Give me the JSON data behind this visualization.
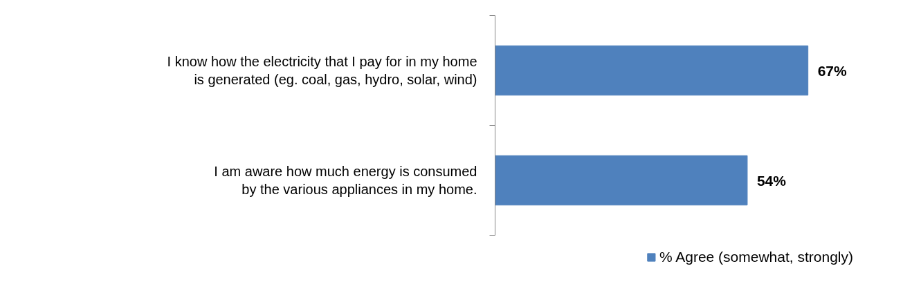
{
  "chart_data": {
    "type": "bar",
    "orientation": "horizontal",
    "categories": [
      "I know how the electricity that I pay for in my home is generated (eg. coal, gas, hydro, solar, wind)",
      "I am aware how much energy is consumed by the various appliances in my home."
    ],
    "series": [
      {
        "name": "% Agree (somewhat, strongly)",
        "color": "#4f81bd",
        "values": [
          67,
          54
        ],
        "value_labels": [
          "67%",
          "54%"
        ]
      }
    ],
    "legend": "bottom right"
  }
}
